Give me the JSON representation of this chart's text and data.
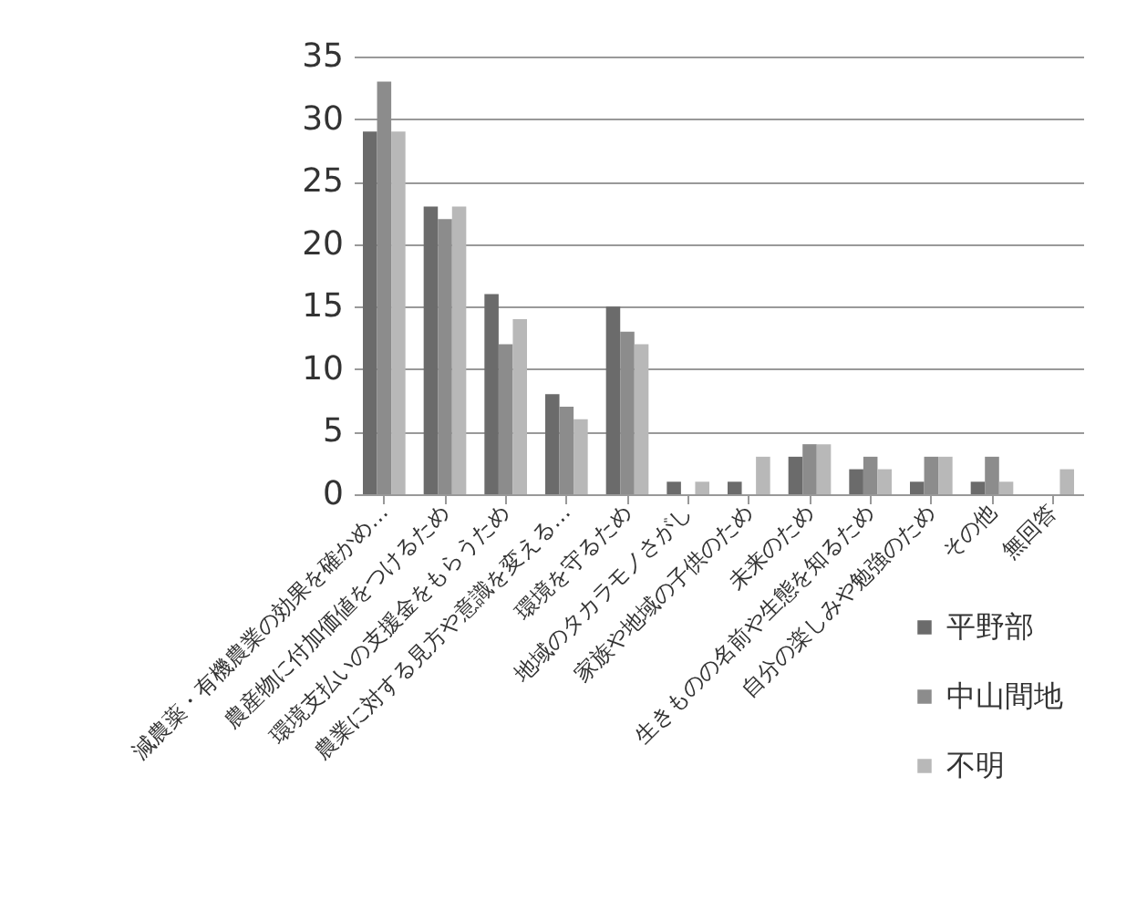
{
  "chart_data": {
    "type": "bar",
    "categories": [
      "減農薬・有機農業の効果を確かめ…",
      "農産物に付加価値をつけるため",
      "環境支払いの支援金をもらうため",
      "農業に対する見方や意識を変える…",
      "環境を守るため",
      "地域のタカラモノさがし",
      "家族や地域の子供のため",
      "未来のため",
      "生きものの名前や生態を知るため",
      "自分の楽しみや勉強のため",
      "その他",
      "無回答"
    ],
    "series": [
      {
        "name": "平野部",
        "color": "#6b6b6b",
        "values": [
          29,
          23,
          16,
          8,
          15,
          1,
          1,
          3,
          2,
          1,
          1,
          0
        ]
      },
      {
        "name": "中山間地",
        "color": "#8c8c8c",
        "values": [
          33,
          22,
          12,
          7,
          13,
          0,
          0,
          4,
          3,
          3,
          3,
          0
        ]
      },
      {
        "name": "不明",
        "color": "#b8b8b8",
        "values": [
          29,
          23,
          14,
          6,
          12,
          1,
          3,
          4,
          2,
          3,
          1,
          2
        ]
      }
    ],
    "ylim": [
      0,
      35
    ],
    "yticks": [
      0,
      5,
      10,
      15,
      20,
      25,
      30,
      35
    ],
    "grid": "y",
    "legend": "bottom right"
  }
}
